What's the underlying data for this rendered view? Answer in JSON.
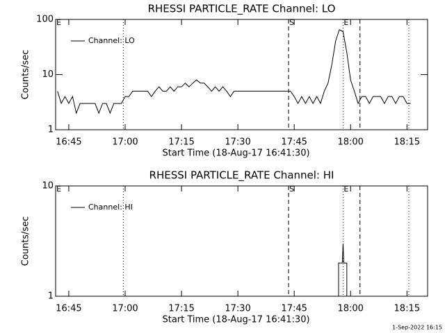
{
  "footer": "1-Sep-2022 16:15",
  "chart_data": [
    {
      "type": "line",
      "title": "RHESSI PARTICLE_RATE Channel: LO",
      "xlabel": "Start Time (18-Aug-17 16:41:30)",
      "ylabel": "Counts/sec",
      "yscale": "log",
      "xlim": [
        1001.5,
        1100.5
      ],
      "ylim": [
        1,
        100
      ],
      "yticks": [
        1,
        10,
        100
      ],
      "xticks": [
        {
          "value": 1005,
          "label": "16:45"
        },
        {
          "value": 1020,
          "label": "17:00"
        },
        {
          "value": 1035,
          "label": "17:15"
        },
        {
          "value": 1050,
          "label": "17:30"
        },
        {
          "value": 1065,
          "label": "17:45"
        },
        {
          "value": 1080,
          "label": "18:00"
        },
        {
          "value": 1095,
          "label": "18:15"
        }
      ],
      "markers": [
        {
          "x": 1001.5,
          "label": "E"
        },
        {
          "x": 1019.5,
          "style": "dotted"
        },
        {
          "x": 1063.5,
          "style": "dashed",
          "label": "S"
        },
        {
          "x": 1078,
          "style": "dotted",
          "label": "E"
        },
        {
          "x": 1082.5,
          "style": "dashed"
        },
        {
          "x": 1095.5,
          "style": "dotted"
        }
      ],
      "x": [
        1002,
        1003,
        1004,
        1005,
        1006,
        1007,
        1008,
        1009,
        1010,
        1011,
        1012,
        1013,
        1014,
        1015,
        1016,
        1017,
        1018,
        1019,
        1020,
        1021,
        1022,
        1023,
        1024,
        1025,
        1026,
        1027,
        1028,
        1029,
        1030,
        1031,
        1032,
        1033,
        1034,
        1035,
        1036,
        1037,
        1038,
        1039,
        1040,
        1041,
        1042,
        1043,
        1044,
        1045,
        1046,
        1047,
        1048,
        1049,
        1050,
        1051,
        1052,
        1053,
        1054,
        1055,
        1056,
        1057,
        1058,
        1059,
        1060,
        1061,
        1062,
        1063,
        1064,
        1065,
        1066,
        1067,
        1068,
        1069,
        1070,
        1071,
        1072,
        1073,
        1074,
        1075,
        1076,
        1077,
        1078,
        1079,
        1080,
        1081,
        1082,
        1083,
        1084,
        1085,
        1086,
        1087,
        1088,
        1089,
        1090,
        1091,
        1092,
        1093,
        1094,
        1095,
        1096
      ],
      "series": [
        {
          "name": "Channel: LO",
          "color": "#000000",
          "values": [
            5,
            3,
            4,
            3,
            4,
            2,
            3,
            3,
            3,
            3,
            3,
            2,
            3,
            3,
            2,
            3,
            3,
            3,
            4,
            4,
            5,
            5,
            5,
            5,
            5,
            4,
            5,
            6,
            5,
            5,
            6,
            5,
            6,
            6,
            7,
            6,
            7,
            8,
            7,
            7,
            6,
            5,
            6,
            5,
            6,
            5,
            4,
            5,
            5,
            5,
            5,
            5,
            5,
            5,
            5,
            5,
            5,
            5,
            5,
            5,
            5,
            5,
            5,
            4,
            3,
            4,
            3,
            4,
            3,
            4,
            3,
            5,
            7,
            15,
            40,
            65,
            60,
            25,
            8,
            5,
            3,
            4,
            4,
            3,
            4,
            4,
            4,
            3,
            4,
            4,
            3,
            4,
            4,
            3,
            3
          ]
        }
      ]
    },
    {
      "type": "line",
      "title": "RHESSI PARTICLE_RATE Channel: HI",
      "xlabel": "Start Time (18-Aug-17 16:41:30)",
      "ylabel": "Counts/sec",
      "yscale": "log",
      "xlim": [
        1001.5,
        1100.5
      ],
      "ylim": [
        1,
        10
      ],
      "yticks": [
        1,
        10
      ],
      "xticks": [
        {
          "value": 1005,
          "label": "16:45"
        },
        {
          "value": 1020,
          "label": "17:00"
        },
        {
          "value": 1035,
          "label": "17:15"
        },
        {
          "value": 1050,
          "label": "17:30"
        },
        {
          "value": 1065,
          "label": "17:45"
        },
        {
          "value": 1080,
          "label": "18:00"
        },
        {
          "value": 1095,
          "label": "18:15"
        }
      ],
      "markers": [
        {
          "x": 1001.5,
          "label": "E"
        },
        {
          "x": 1019.5,
          "style": "dotted"
        },
        {
          "x": 1063.5,
          "style": "dashed",
          "label": "S"
        },
        {
          "x": 1078,
          "style": "dotted",
          "label": "E"
        },
        {
          "x": 1082.5,
          "style": "dashed"
        },
        {
          "x": 1095.5,
          "style": "dotted"
        }
      ],
      "x": [
        1002,
        1076.8,
        1076.8,
        1077.8,
        1078,
        1078.2,
        1079,
        1079,
        1096
      ],
      "series": [
        {
          "name": "Channel: HI",
          "color": "#000000",
          "values": [
            1,
            1,
            2,
            2,
            3,
            2,
            2,
            1,
            1
          ]
        }
      ]
    }
  ]
}
